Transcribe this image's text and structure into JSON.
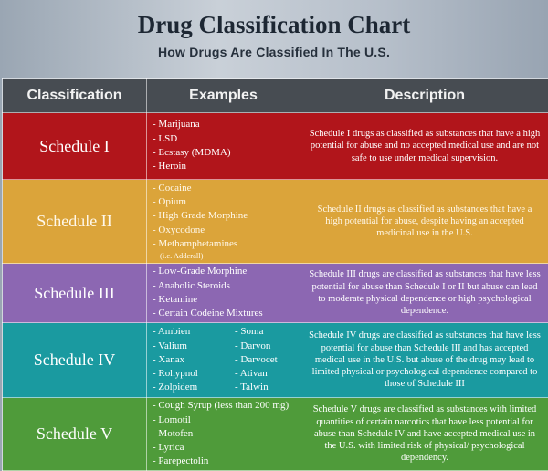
{
  "header": {
    "title": "Drug Classification Chart",
    "subtitle": "How Drugs Are Classified In The U.S."
  },
  "table": {
    "columns": [
      "Classification",
      "Examples",
      "Description"
    ],
    "rows": [
      {
        "classification": "Schedule I",
        "color": "#b1151b",
        "examples": [
          "- Marijuana",
          "- LSD",
          "- Ecstasy (MDMA)",
          "- Heroin"
        ],
        "description": "Schedule I drugs as classified as substances that have a high potential for abuse and no accepted medical use and are not safe to use under medical supervision."
      },
      {
        "classification": "Schedule II",
        "color": "#dba43a",
        "examples": [
          "- Cocaine",
          "- Opium",
          "- High Grade Morphine",
          "- Oxycodone",
          "- Methamphetamines"
        ],
        "note": "(i.e. Adderall)",
        "description": "Schedule II drugs as classified as substances that have a high potential for abuse, despite having an accepted medicinal use in the U.S."
      },
      {
        "classification": "Schedule III",
        "color": "#8c67b2",
        "examples": [
          "- Low-Grade Morphine",
          "- Anabolic Steroids",
          "- Ketamine",
          "- Certain Codeine Mixtures"
        ],
        "description": "Schedule III drugs are classified as substances that have less potential for abuse than Schedule I or II but abuse can lead to moderate physical dependence or high psychological dependence."
      },
      {
        "classification": "Schedule IV",
        "color": "#1a9aa0",
        "examples_col1": [
          "- Ambien",
          "- Valium",
          "- Xanax",
          "- Rohypnol",
          "- Zolpidem"
        ],
        "examples_col2": [
          "- Soma",
          "- Darvon",
          "- Darvocet",
          "- Ativan",
          "- Talwin"
        ],
        "description": "Schedule IV drugs are classified as substances that have less potential for abuse than Schedule III and has accepted medical use in the U.S. but abuse of the drug may lead to limited physical or psychological dependence compared to those of Schedule III"
      },
      {
        "classification": "Schedule V",
        "color": "#4f9b3a",
        "examples": [
          "- Cough Syrup (less than 200 mg)",
          "- Lomotil",
          "- Motofen",
          "- Lyrica",
          "- Parepectolin"
        ],
        "description": "Schedule V drugs are classified as substances with limited quantities of certain narcotics  that have less potential for abuse than Schedule IV and have accepted medical use in the U.S. with limited risk of physical/ psychological dependency."
      }
    ]
  }
}
